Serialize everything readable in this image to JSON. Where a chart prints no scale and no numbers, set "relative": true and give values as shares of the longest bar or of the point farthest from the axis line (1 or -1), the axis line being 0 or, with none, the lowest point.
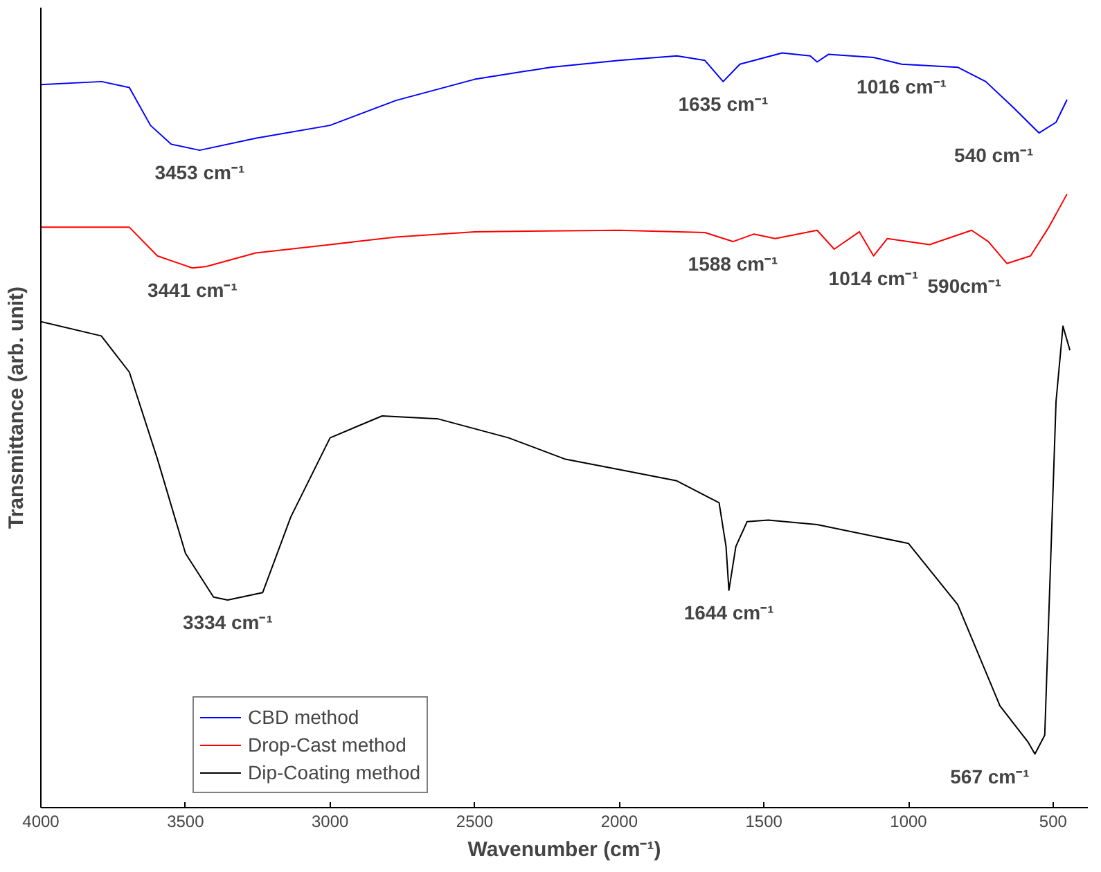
{
  "chart_data": {
    "type": "line",
    "relative": true,
    "xlabel": "Wavenumber (cm⁻¹)",
    "ylabel": "Transmittance (arb. unit)",
    "xlim": [
      4000,
      380
    ],
    "xticks": [
      4000,
      3500,
      3000,
      2500,
      2000,
      1500,
      1000,
      500
    ],
    "legend": "bottom left",
    "grid": false,
    "tick_labels": "x",
    "series": [
      {
        "name": "CBD method",
        "color": "#0000ff",
        "x": [
          4000,
          3790,
          3694,
          3621,
          3549,
          3451,
          3257,
          3000,
          2772,
          2500,
          2238,
          2000,
          1801,
          1704,
          1641,
          1583,
          1437,
          1340,
          1316,
          1277,
          1121,
          1024,
          830,
          733,
          636,
          549,
          490,
          452
        ],
        "values": [
          0.958,
          0.962,
          0.954,
          0.904,
          0.879,
          0.871,
          0.887,
          0.904,
          0.937,
          0.965,
          0.981,
          0.99,
          0.996,
          0.99,
          0.962,
          0.985,
          1.0,
          0.996,
          0.988,
          0.998,
          0.994,
          0.985,
          0.981,
          0.962,
          0.927,
          0.894,
          0.908,
          0.938
        ]
      },
      {
        "name": "Drop-Cast method",
        "color": "#ff0000",
        "x": [
          4000,
          3694,
          3597,
          3476,
          3427,
          3257,
          3000,
          2772,
          2500,
          2000,
          1704,
          1607,
          1534,
          1461,
          1316,
          1257,
          1170,
          1121,
          1073,
          927,
          782,
          724,
          660,
          578,
          515,
          452
        ],
        "values": [
          0.769,
          0.769,
          0.731,
          0.715,
          0.717,
          0.735,
          0.746,
          0.756,
          0.763,
          0.765,
          0.762,
          0.75,
          0.76,
          0.754,
          0.765,
          0.74,
          0.763,
          0.731,
          0.754,
          0.746,
          0.765,
          0.75,
          0.721,
          0.731,
          0.769,
          0.813
        ]
      },
      {
        "name": "Dip-Coating method",
        "color": "#000000",
        "x": [
          4000,
          3791,
          3694,
          3597,
          3500,
          3403,
          3354,
          3233,
          3136,
          3000,
          2820,
          2626,
          2383,
          2189,
          2000,
          1801,
          1655,
          1631,
          1621,
          1597,
          1558,
          1485,
          1316,
          1000,
          830,
          684,
          587,
          563,
          529,
          490,
          466,
          442
        ],
        "values": [
          0.644,
          0.625,
          0.577,
          0.462,
          0.337,
          0.279,
          0.275,
          0.285,
          0.385,
          0.49,
          0.519,
          0.515,
          0.49,
          0.462,
          0.448,
          0.433,
          0.404,
          0.346,
          0.288,
          0.346,
          0.379,
          0.381,
          0.375,
          0.35,
          0.269,
          0.135,
          0.087,
          0.071,
          0.096,
          0.538,
          0.638,
          0.606
        ]
      }
    ],
    "annotations": [
      {
        "text": "3453 cm⁻¹",
        "x": 3451,
        "y": 0.871
      },
      {
        "text": "1635 cm⁻¹",
        "x": 1641,
        "y": 0.962
      },
      {
        "text": "1016 cm⁻¹",
        "x": 1024,
        "y": 0.985
      },
      {
        "text": "540 cm⁻¹",
        "x": 549,
        "y": 0.894
      },
      {
        "text": "3441 cm⁻¹",
        "x": 3476,
        "y": 0.715
      },
      {
        "text": "1588 cm⁻¹",
        "x": 1607,
        "y": 0.75
      },
      {
        "text": "1014 cm⁻¹",
        "x": 1121,
        "y": 0.731
      },
      {
        "text": "590cm⁻¹",
        "x": 660,
        "y": 0.721
      },
      {
        "text": "3334 cm⁻¹",
        "x": 3354,
        "y": 0.275
      },
      {
        "text": "1644 cm⁻¹",
        "x": 1621,
        "y": 0.288
      },
      {
        "text": "567 cm⁻¹",
        "x": 563,
        "y": 0.071
      }
    ]
  }
}
